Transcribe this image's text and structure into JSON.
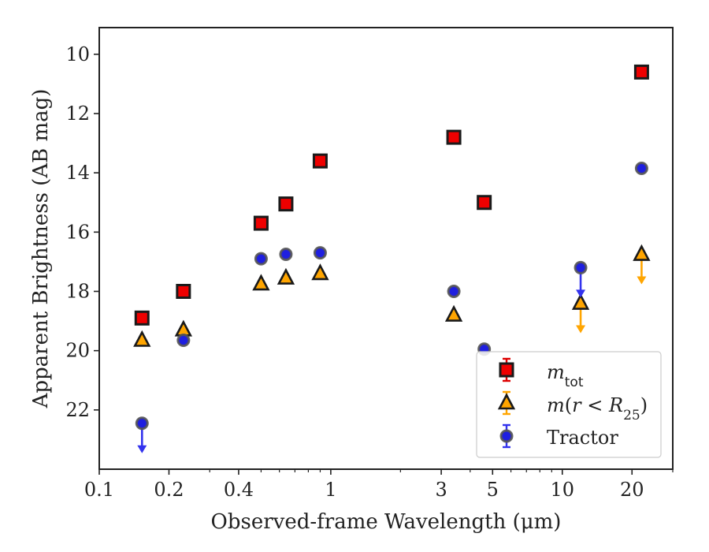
{
  "chart_data": {
    "type": "scatter",
    "xlabel": "Observed-frame Wavelength (μm)",
    "ylabel": "Apparent Brightness (AB mag)",
    "xscale": "log",
    "xlim": [
      0.1,
      30
    ],
    "ylim": [
      24.0,
      9.1
    ],
    "y_inverted": true,
    "x_ticks": [
      {
        "value": 0.1,
        "label": "0.1"
      },
      {
        "value": 0.2,
        "label": "0.2"
      },
      {
        "value": 0.4,
        "label": "0.4"
      },
      {
        "value": 1,
        "label": "1"
      },
      {
        "value": 3,
        "label": "3"
      },
      {
        "value": 5,
        "label": "5"
      },
      {
        "value": 10,
        "label": "10"
      },
      {
        "value": 20,
        "label": "20"
      }
    ],
    "y_ticks": [
      {
        "value": 10,
        "label": "10"
      },
      {
        "value": 12,
        "label": "12"
      },
      {
        "value": 14,
        "label": "14"
      },
      {
        "value": 16,
        "label": "16"
      },
      {
        "value": 18,
        "label": "18"
      },
      {
        "value": 20,
        "label": "20"
      },
      {
        "value": 22,
        "label": "22"
      }
    ],
    "legend_position": "lower-right",
    "series": [
      {
        "key": "m_tot",
        "name": "m_tot",
        "marker": "square",
        "color": "#ee0000",
        "error_color": "#dd0000",
        "points": [
          {
            "x": 0.153,
            "y": 18.9
          },
          {
            "x": 0.231,
            "y": 18.0
          },
          {
            "x": 0.5,
            "y": 15.7
          },
          {
            "x": 0.64,
            "y": 15.05
          },
          {
            "x": 0.9,
            "y": 13.6
          },
          {
            "x": 3.4,
            "y": 12.8
          },
          {
            "x": 4.6,
            "y": 15.0
          },
          {
            "x": 22.0,
            "y": 10.6
          }
        ]
      },
      {
        "key": "m_r25",
        "name": "m(r < R25)",
        "marker": "triangle",
        "color": "#ffa500",
        "error_color": "#ffa500",
        "points": [
          {
            "x": 0.153,
            "y": 19.65
          },
          {
            "x": 0.231,
            "y": 19.3
          },
          {
            "x": 0.5,
            "y": 17.75
          },
          {
            "x": 0.64,
            "y": 17.55
          },
          {
            "x": 0.9,
            "y": 17.4
          },
          {
            "x": 3.4,
            "y": 18.8
          },
          {
            "x": 12.0,
            "y": 18.4,
            "upper_limit": true
          },
          {
            "x": 22.0,
            "y": 16.75,
            "upper_limit": true
          }
        ]
      },
      {
        "key": "tractor",
        "name": "Tractor",
        "marker": "circle",
        "color": "#1f1fe0",
        "error_color": "#3333ee",
        "points": [
          {
            "x": 0.153,
            "y": 22.45,
            "upper_limit": true
          },
          {
            "x": 0.231,
            "y": 19.65
          },
          {
            "x": 0.5,
            "y": 16.9
          },
          {
            "x": 0.64,
            "y": 16.75
          },
          {
            "x": 0.9,
            "y": 16.7
          },
          {
            "x": 3.4,
            "y": 18.0
          },
          {
            "x": 4.6,
            "y": 19.95
          },
          {
            "x": 12.0,
            "y": 17.2,
            "upper_limit": true
          },
          {
            "x": 22.0,
            "y": 13.85
          }
        ]
      }
    ]
  }
}
